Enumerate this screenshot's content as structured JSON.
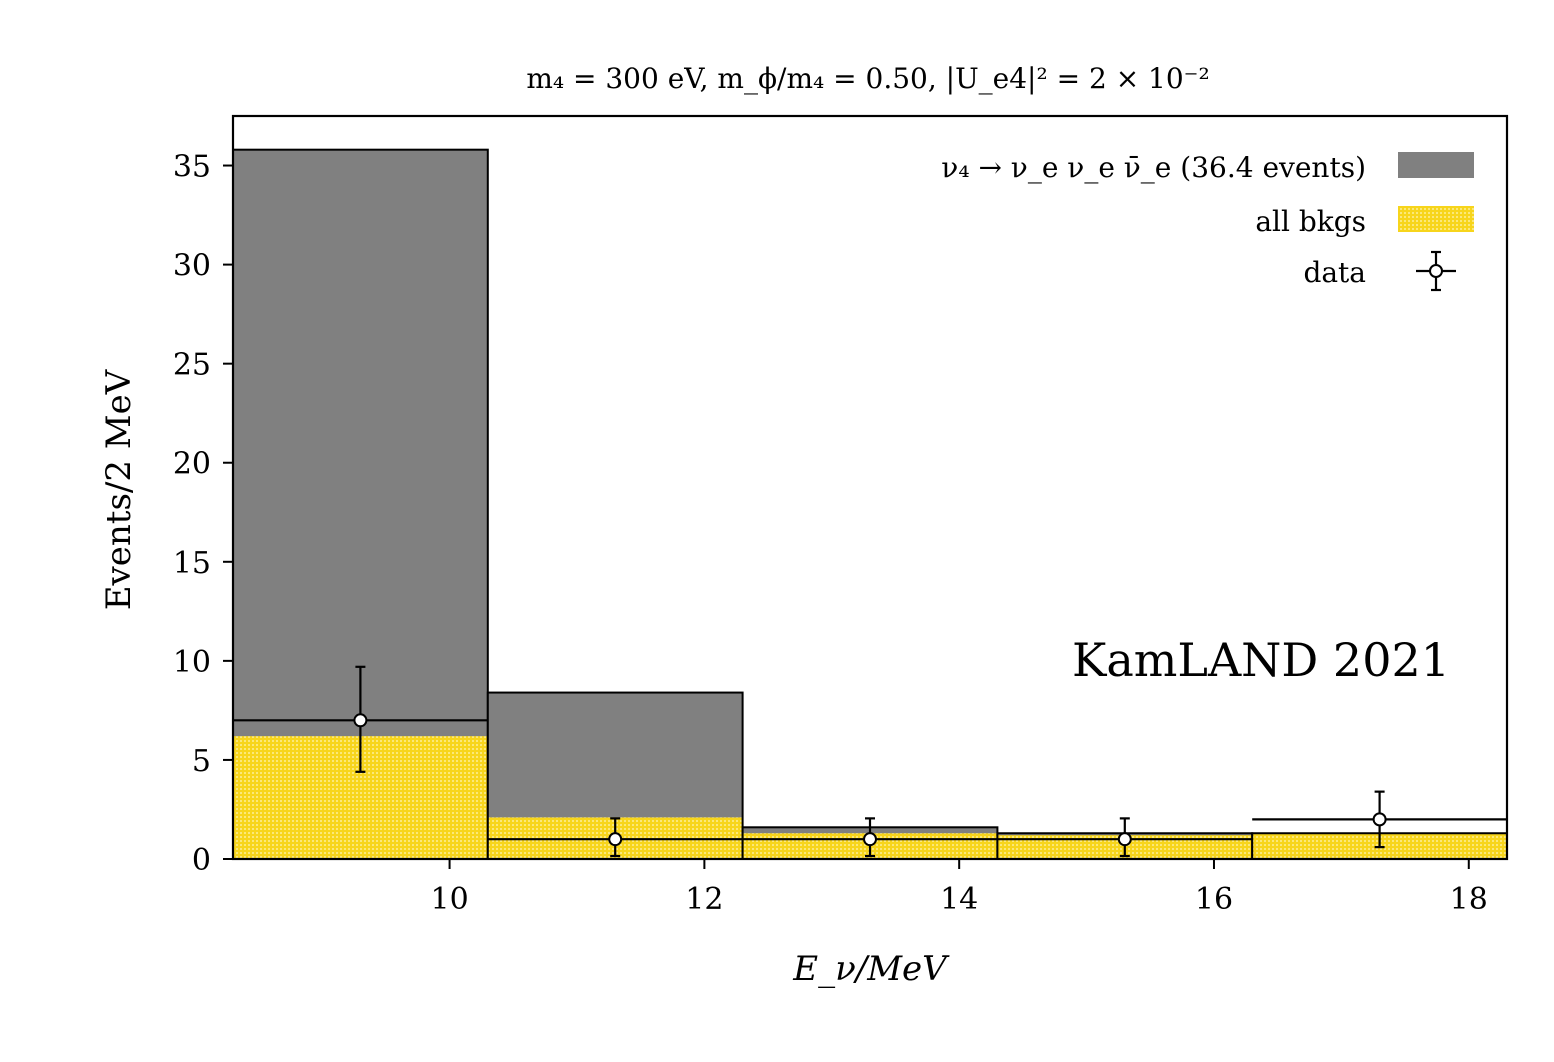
{
  "chart_data": {
    "type": "bar",
    "title": "m₄ = 300 eV,  m_ϕ/m₄ = 0.50,   |U_e4|² = 2 × 10⁻²",
    "xlabel": "E_ν/MeV",
    "ylabel": "Events/2 MeV",
    "xlim": [
      8.3,
      18.3
    ],
    "ylim": [
      0,
      37.5
    ],
    "x_ticks": [
      10,
      12,
      14,
      16,
      18
    ],
    "y_ticks": [
      0,
      5,
      10,
      15,
      20,
      25,
      30,
      35
    ],
    "bin_edges": [
      8.3,
      10.3,
      12.3,
      14.3,
      16.3,
      18.3
    ],
    "series": [
      {
        "name": "ν₄ → ν_e ν_e ν̄_e (36.4 events)",
        "kind": "stacked-bar",
        "color": "#808080",
        "totals": [
          35.8,
          8.4,
          1.6,
          1.3,
          1.3
        ]
      },
      {
        "name": "all bkgs",
        "kind": "bar",
        "color": "#f7d51c",
        "values": [
          6.2,
          2.1,
          1.3,
          1.2,
          1.3
        ]
      },
      {
        "name": "data",
        "kind": "errorbar",
        "x": [
          9.3,
          11.3,
          13.3,
          15.3,
          17.3
        ],
        "y": [
          7,
          1,
          1,
          1,
          2
        ],
        "yerr_low": [
          2.6,
          0.85,
          0.85,
          0.85,
          1.4
        ],
        "yerr_high": [
          2.7,
          1.05,
          1.05,
          1.05,
          1.4
        ],
        "xerr": [
          1,
          1,
          1,
          1,
          1
        ]
      }
    ],
    "legend_position": "top-right",
    "annotation": "KamLAND 2021",
    "grid": false
  }
}
